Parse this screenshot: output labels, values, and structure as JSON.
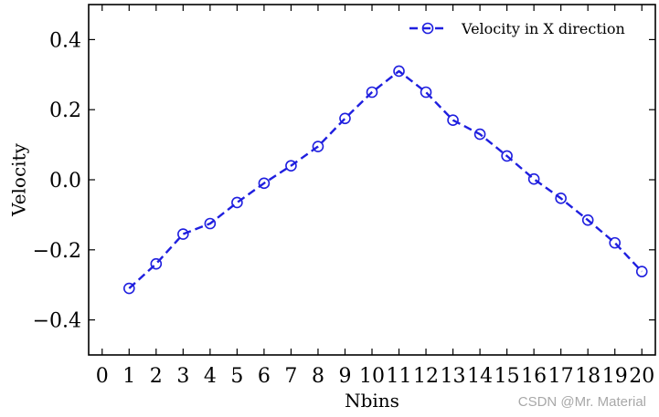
{
  "chart_data": {
    "type": "line",
    "xlabel": "Nbins",
    "ylabel": "Velocity",
    "xlim": [
      -0.5,
      20.5
    ],
    "ylim": [
      -0.5,
      0.5
    ],
    "xticks": [
      0,
      1,
      2,
      3,
      4,
      5,
      6,
      7,
      8,
      9,
      10,
      11,
      12,
      13,
      14,
      15,
      16,
      17,
      18,
      19,
      20
    ],
    "yticks": [
      -0.4,
      -0.2,
      0.0,
      0.2,
      0.4
    ],
    "ytick_labels": [
      "−0.4",
      "−0.2",
      "0.0",
      "0.2",
      "0.4"
    ],
    "grid": false,
    "legend_position": "top-right",
    "series": [
      {
        "name": "Velocity in X direction",
        "color": "#1f1fdf",
        "line_style": "dashed",
        "marker": "open-circle",
        "x": [
          1,
          2,
          3,
          4,
          5,
          6,
          7,
          8,
          9,
          10,
          11,
          12,
          13,
          14,
          15,
          16,
          17,
          18,
          19,
          20
        ],
        "y": [
          -0.31,
          -0.24,
          -0.155,
          -0.125,
          -0.065,
          -0.01,
          0.04,
          0.095,
          0.175,
          0.25,
          0.31,
          0.25,
          0.17,
          0.13,
          0.068,
          0.002,
          -0.053,
          -0.115,
          -0.18,
          -0.262
        ]
      }
    ]
  },
  "watermark": "CSDN @Mr. Material"
}
